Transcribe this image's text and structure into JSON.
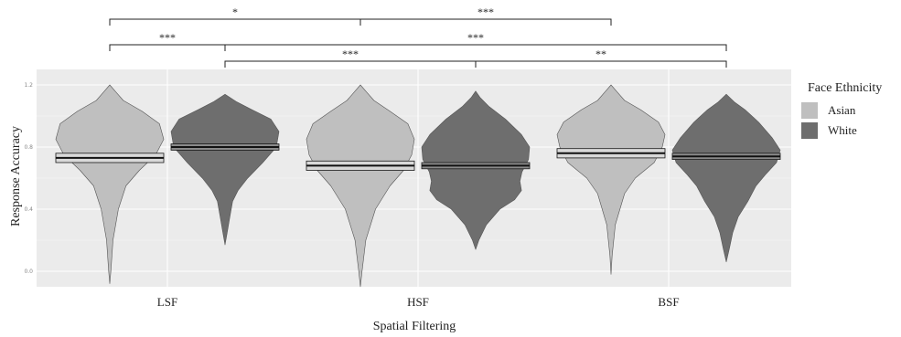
{
  "chart_data": {
    "type": "violin",
    "xlabel": "Spatial Filtering",
    "ylabel": "Response Accuracy",
    "ylim": [
      -0.1,
      1.3
    ],
    "yticks": [
      "0.0",
      "0.4",
      "0.8",
      "1.2"
    ],
    "ytick_values": [
      0.0,
      0.4,
      0.8,
      1.2
    ],
    "categories": [
      "LSF",
      "HSF",
      "BSF"
    ],
    "grid": true,
    "legend": {
      "title": "Face Ethnicity",
      "position": "right",
      "entries": [
        {
          "name": "Asian",
          "color": "#bfbfbf"
        },
        {
          "name": "White",
          "color": "#6e6e6e"
        }
      ]
    },
    "series": [
      {
        "name": "Asian",
        "color": "#bfbfbf",
        "violins": [
          {
            "category": "LSF",
            "min": -0.08,
            "max": 1.2,
            "mean": 0.73,
            "ci": [
              0.7,
              0.76
            ],
            "profile": [
              [
                -0.08,
                0
              ],
              [
                0,
                0.02
              ],
              [
                0.2,
                0.06
              ],
              [
                0.4,
                0.16
              ],
              [
                0.55,
                0.3
              ],
              [
                0.65,
                0.55
              ],
              [
                0.75,
                0.85
              ],
              [
                0.85,
                1
              ],
              [
                0.95,
                0.92
              ],
              [
                1.03,
                0.6
              ],
              [
                1.1,
                0.25
              ],
              [
                1.16,
                0.1
              ],
              [
                1.2,
                0
              ]
            ]
          },
          {
            "category": "HSF",
            "min": -0.1,
            "max": 1.2,
            "mean": 0.68,
            "ci": [
              0.65,
              0.71
            ],
            "profile": [
              [
                -0.1,
                0
              ],
              [
                0,
                0.03
              ],
              [
                0.2,
                0.1
              ],
              [
                0.4,
                0.28
              ],
              [
                0.55,
                0.55
              ],
              [
                0.65,
                0.8
              ],
              [
                0.75,
                0.95
              ],
              [
                0.85,
                1
              ],
              [
                0.95,
                0.88
              ],
              [
                1.03,
                0.55
              ],
              [
                1.1,
                0.25
              ],
              [
                1.16,
                0.1
              ],
              [
                1.2,
                0
              ]
            ]
          },
          {
            "category": "BSF",
            "min": -0.02,
            "max": 1.2,
            "mean": 0.76,
            "ci": [
              0.73,
              0.79
            ],
            "profile": [
              [
                -0.02,
                0
              ],
              [
                0.1,
                0.02
              ],
              [
                0.3,
                0.08
              ],
              [
                0.5,
                0.25
              ],
              [
                0.6,
                0.45
              ],
              [
                0.7,
                0.8
              ],
              [
                0.8,
                0.95
              ],
              [
                0.88,
                1
              ],
              [
                0.96,
                0.88
              ],
              [
                1.04,
                0.55
              ],
              [
                1.1,
                0.25
              ],
              [
                1.16,
                0.1
              ],
              [
                1.2,
                0
              ]
            ]
          }
        ]
      },
      {
        "name": "White",
        "color": "#6e6e6e",
        "violins": [
          {
            "category": "LSF",
            "min": 0.17,
            "max": 1.14,
            "mean": 0.8,
            "ci": [
              0.78,
              0.82
            ],
            "profile": [
              [
                0.17,
                0
              ],
              [
                0.25,
                0.04
              ],
              [
                0.35,
                0.09
              ],
              [
                0.45,
                0.14
              ],
              [
                0.52,
                0.24
              ],
              [
                0.6,
                0.42
              ],
              [
                0.7,
                0.7
              ],
              [
                0.8,
                0.95
              ],
              [
                0.9,
                1
              ],
              [
                0.98,
                0.85
              ],
              [
                1.04,
                0.5
              ],
              [
                1.09,
                0.22
              ],
              [
                1.14,
                0
              ]
            ]
          },
          {
            "category": "HSF",
            "min": 0.14,
            "max": 1.16,
            "mean": 0.68,
            "ci": [
              0.66,
              0.7
            ],
            "profile": [
              [
                0.14,
                0
              ],
              [
                0.2,
                0.06
              ],
              [
                0.3,
                0.2
              ],
              [
                0.4,
                0.45
              ],
              [
                0.46,
                0.72
              ],
              [
                0.52,
                0.85
              ],
              [
                0.58,
                0.82
              ],
              [
                0.64,
                0.86
              ],
              [
                0.72,
                0.98
              ],
              [
                0.8,
                1
              ],
              [
                0.88,
                0.85
              ],
              [
                0.98,
                0.55
              ],
              [
                1.06,
                0.25
              ],
              [
                1.12,
                0.08
              ],
              [
                1.16,
                0
              ]
            ]
          },
          {
            "category": "BSF",
            "min": 0.06,
            "max": 1.14,
            "mean": 0.74,
            "ci": [
              0.72,
              0.76
            ],
            "profile": [
              [
                0.06,
                0
              ],
              [
                0.15,
                0.06
              ],
              [
                0.25,
                0.12
              ],
              [
                0.35,
                0.22
              ],
              [
                0.45,
                0.4
              ],
              [
                0.55,
                0.55
              ],
              [
                0.62,
                0.72
              ],
              [
                0.7,
                0.93
              ],
              [
                0.78,
                1
              ],
              [
                0.86,
                0.85
              ],
              [
                0.96,
                0.6
              ],
              [
                1.04,
                0.35
              ],
              [
                1.09,
                0.15
              ],
              [
                1.14,
                0
              ]
            ]
          }
        ]
      }
    ],
    "significance": [
      {
        "label": "*",
        "from": "LSF-Asian",
        "to": "HSF-Asian"
      },
      {
        "label": "***",
        "from": "HSF-Asian",
        "to": "BSF-Asian"
      },
      {
        "label": "***",
        "from": "LSF-Asian",
        "to": "LSF-White"
      },
      {
        "label": "***",
        "from": "LSF-White",
        "to": "BSF-White"
      },
      {
        "label": "***",
        "from": "LSF-White",
        "to": "HSF-White"
      },
      {
        "label": "**",
        "from": "HSF-White",
        "to": "BSF-White"
      }
    ]
  }
}
